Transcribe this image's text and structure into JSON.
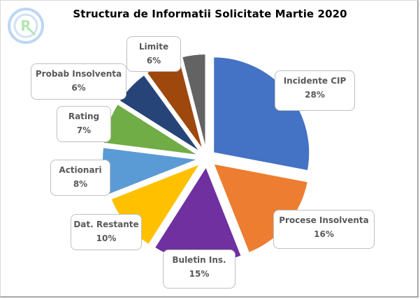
{
  "chart_data": {
    "type": "pie",
    "title": "Structura de Informatii Solicitate Martie 2020",
    "exploded": true,
    "categories": [
      "Incidente CIP",
      "Procese Insolventa",
      "Buletin Ins.",
      "Dat. Restante",
      "Actionari",
      "Rating",
      "Probab Insolventa",
      "Limite",
      ""
    ],
    "values": [
      28,
      16,
      15,
      10,
      8,
      7,
      6,
      6,
      4
    ],
    "value_labels": [
      "28%",
      "16%",
      "15%",
      "10%",
      "8%",
      "7%",
      "6%",
      "6%",
      ""
    ],
    "colors": [
      "#4472c4",
      "#ed7d31",
      "#7030a0",
      "#ffc000",
      "#5b9bd5",
      "#70ad47",
      "#264478",
      "#9e480e",
      "#636363"
    ],
    "legend": "none",
    "data_labels": "callout boxes with category name and percent"
  },
  "labels": {
    "incidente": {
      "name": "Incidente CIP",
      "pct": "28%"
    },
    "procese": {
      "name": "Procese Insolventa",
      "pct": "16%"
    },
    "buletin": {
      "name": "Buletin Ins.",
      "pct": "15%"
    },
    "restante": {
      "name": "Dat. Restante",
      "pct": "10%"
    },
    "actionari": {
      "name": "Actionari",
      "pct": "8%"
    },
    "rating": {
      "name": "Rating",
      "pct": "7%"
    },
    "probab": {
      "name": "Probab Insolventa",
      "pct": "6%"
    },
    "limite": {
      "name": "Limite",
      "pct": "6%"
    }
  },
  "logo": {
    "letter": "R",
    "ring_color": "#b4d2f0",
    "letter_color": "#a9e3a9"
  }
}
